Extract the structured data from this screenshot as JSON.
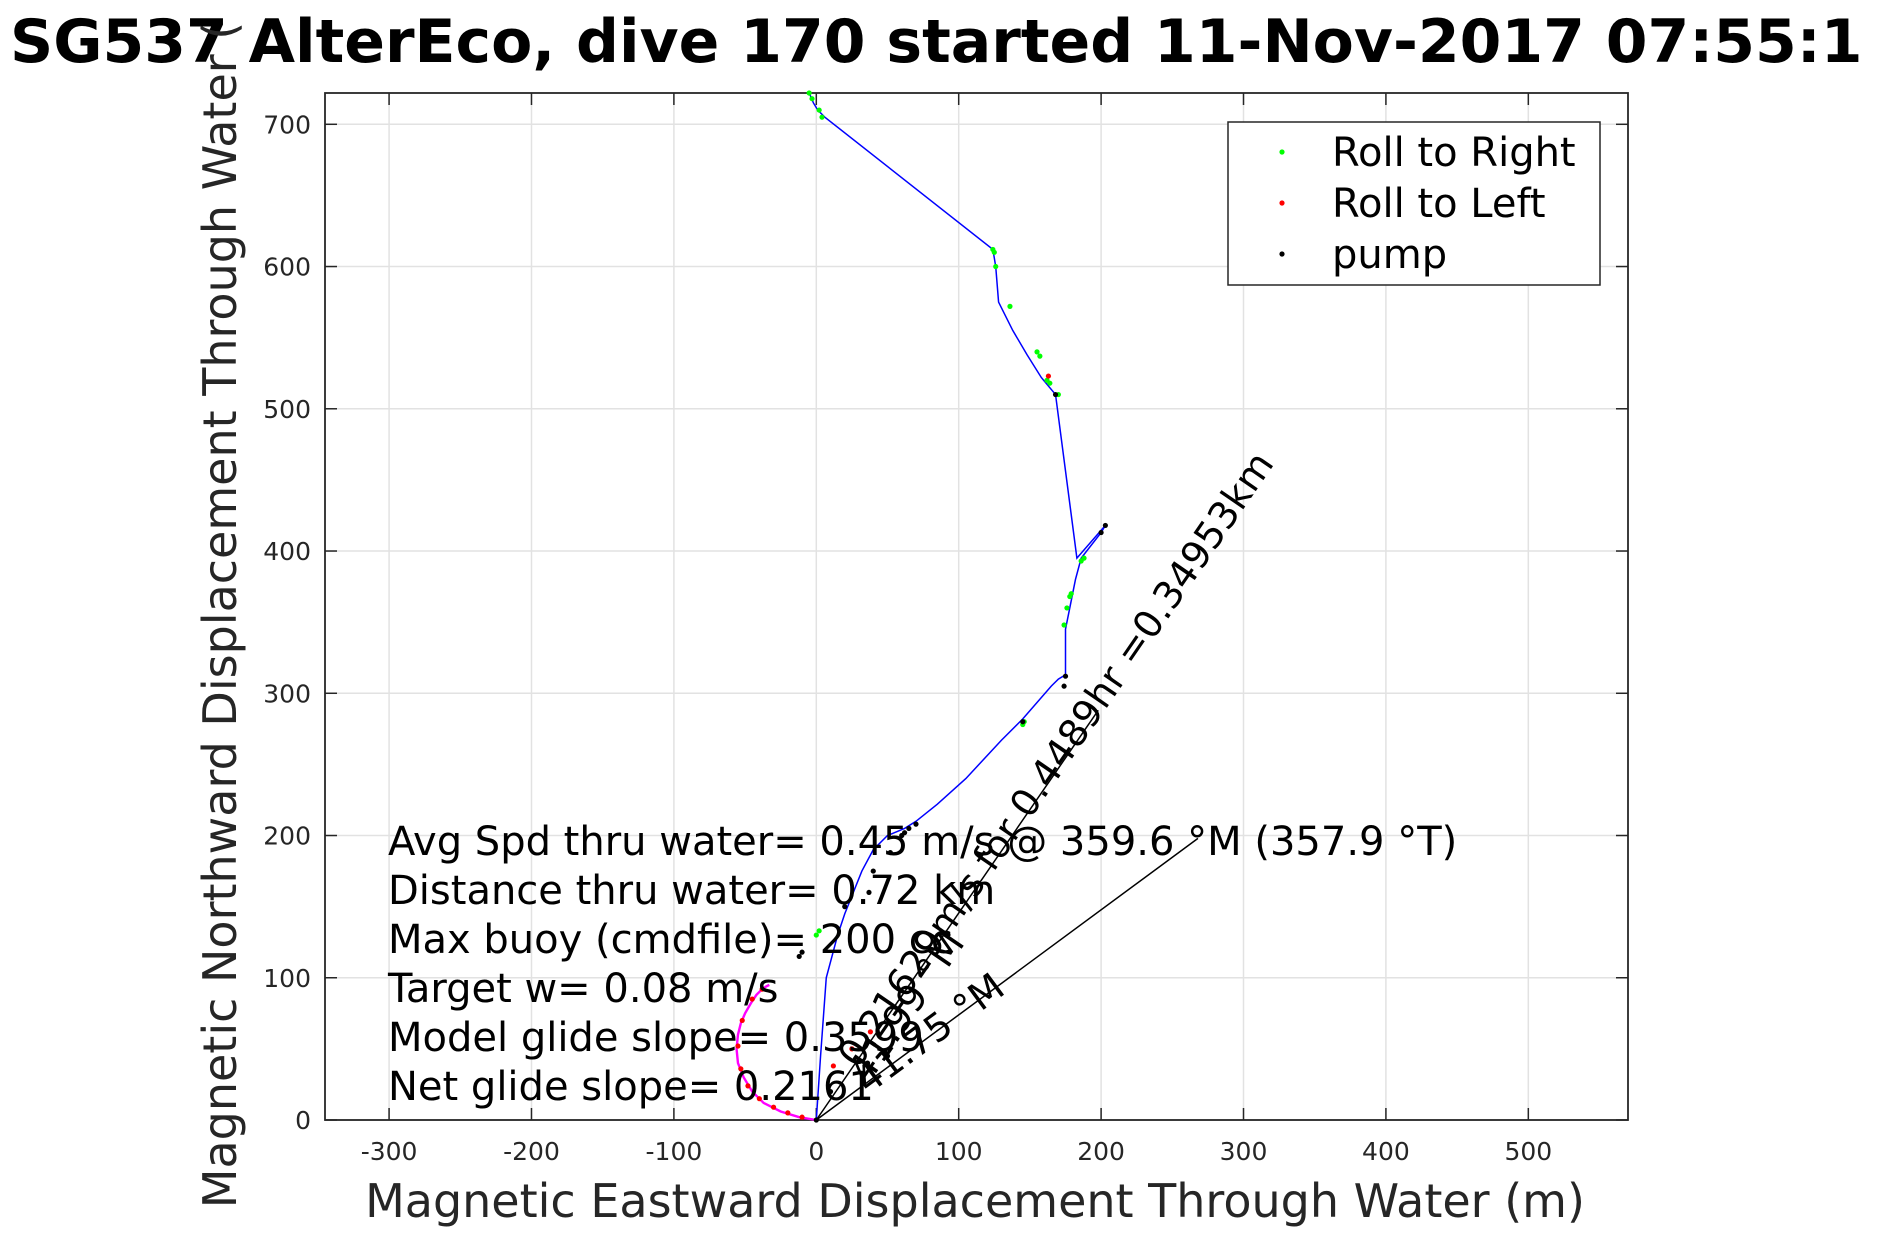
{
  "chart_data": {
    "type": "scatter",
    "title": "SG537 AlterEco, dive 170 started 11-Nov-2017 07:55:1",
    "xlabel": "Magnetic Eastward Displacement Through Water (m)",
    "ylabel": "Magnetic Northward Displacement Through Water (",
    "xlim": [
      -345,
      570
    ],
    "ylim": [
      0,
      722
    ],
    "xticks": [
      -300,
      -200,
      -100,
      0,
      100,
      200,
      300,
      400,
      500
    ],
    "yticks": [
      0,
      100,
      200,
      300,
      400,
      500,
      600,
      700
    ],
    "grid": true,
    "legend_position": "top-right",
    "legend": [
      {
        "label": "Roll to Right",
        "color": "#00ff00"
      },
      {
        "label": "Roll to Left",
        "color": "#ff0000"
      },
      {
        "label": "pump",
        "color": "#000000"
      }
    ],
    "colors": {
      "track": "#0000ff",
      "roll_right": "#00ff00",
      "roll_left": "#ff0000",
      "pump": "#000000",
      "spiral": "#ff00ff"
    },
    "track": {
      "x": [
        0,
        3,
        7,
        11,
        15,
        20,
        26,
        32,
        40,
        50,
        62,
        70,
        85,
        105,
        130,
        145,
        165,
        170,
        175,
        175,
        178,
        180,
        182,
        186,
        200,
        203,
        183,
        168,
        158,
        148,
        138,
        128,
        126,
        124,
        6,
        1,
        -2,
        -5
      ],
      "y": [
        0,
        45,
        100,
        115,
        130,
        145,
        160,
        175,
        190,
        200,
        205,
        210,
        222,
        240,
        267,
        282,
        305,
        310,
        313,
        345,
        360,
        370,
        380,
        395,
        413,
        418,
        395,
        510,
        522,
        538,
        555,
        575,
        600,
        612,
        705,
        710,
        715,
        722
      ]
    },
    "spiral": {
      "x": [
        0,
        -12,
        -25,
        -37,
        -45,
        -51,
        -55,
        -56,
        -55,
        -53,
        -50,
        -46,
        -42,
        -38,
        -35,
        -33
      ],
      "y": [
        0,
        2,
        6,
        12,
        20,
        30,
        40,
        50,
        60,
        68,
        75,
        82,
        88,
        92,
        94,
        95
      ]
    },
    "roll_right_points": {
      "x": [
        -5,
        -3,
        2,
        4,
        124,
        125,
        126,
        136,
        155,
        157,
        162,
        164,
        170,
        174,
        176,
        178,
        179,
        186,
        188,
        145,
        146,
        0,
        2
      ],
      "y": [
        722,
        718,
        710,
        705,
        612,
        610,
        600,
        572,
        540,
        537,
        520,
        518,
        510,
        348,
        360,
        368,
        370,
        393,
        395,
        278,
        280,
        130,
        133
      ]
    },
    "roll_left_points": {
      "x": [
        163,
        -10,
        -20,
        -30,
        -40,
        -48,
        -53,
        -55,
        -52,
        -45,
        -38,
        12,
        25,
        38
      ],
      "y": [
        523,
        2,
        5,
        9,
        15,
        24,
        36,
        52,
        70,
        85,
        92,
        38,
        50,
        62
      ]
    },
    "pump_points": {
      "x": [
        0,
        168,
        174,
        175,
        200,
        203,
        145,
        60,
        62,
        65,
        70,
        52,
        40,
        37,
        20,
        -10,
        -12,
        10,
        36,
        50
      ],
      "y": [
        0,
        510,
        305,
        312,
        413,
        418,
        280,
        200,
        202,
        205,
        208,
        188,
        175,
        160,
        150,
        118,
        115,
        20,
        40,
        45
      ]
    },
    "reference_lines": [
      {
        "x": [
          0,
          198
        ],
        "y": [
          0,
          288
        ]
      },
      {
        "x": [
          0,
          268
        ],
        "y": [
          0,
          198
        ]
      }
    ],
    "annotations": {
      "stats": [
        "Avg Spd thru water=  0.45 m/s @ 359.6 °M (357.9 °T)",
        "Distance thru water=  0.72 km",
        "Max buoy (cmdfile)= 200 cc",
        "Target w= 0.08 m/s",
        "Model glide slope= 0.3599",
        "Net glide slope= 0.2161"
      ],
      "diagonal_1": "0.21629m/s for 0.4489hr =0.34953km",
      "diagonal_2": "41.99 °M",
      "diagonal_3": "41.75 °M"
    }
  }
}
